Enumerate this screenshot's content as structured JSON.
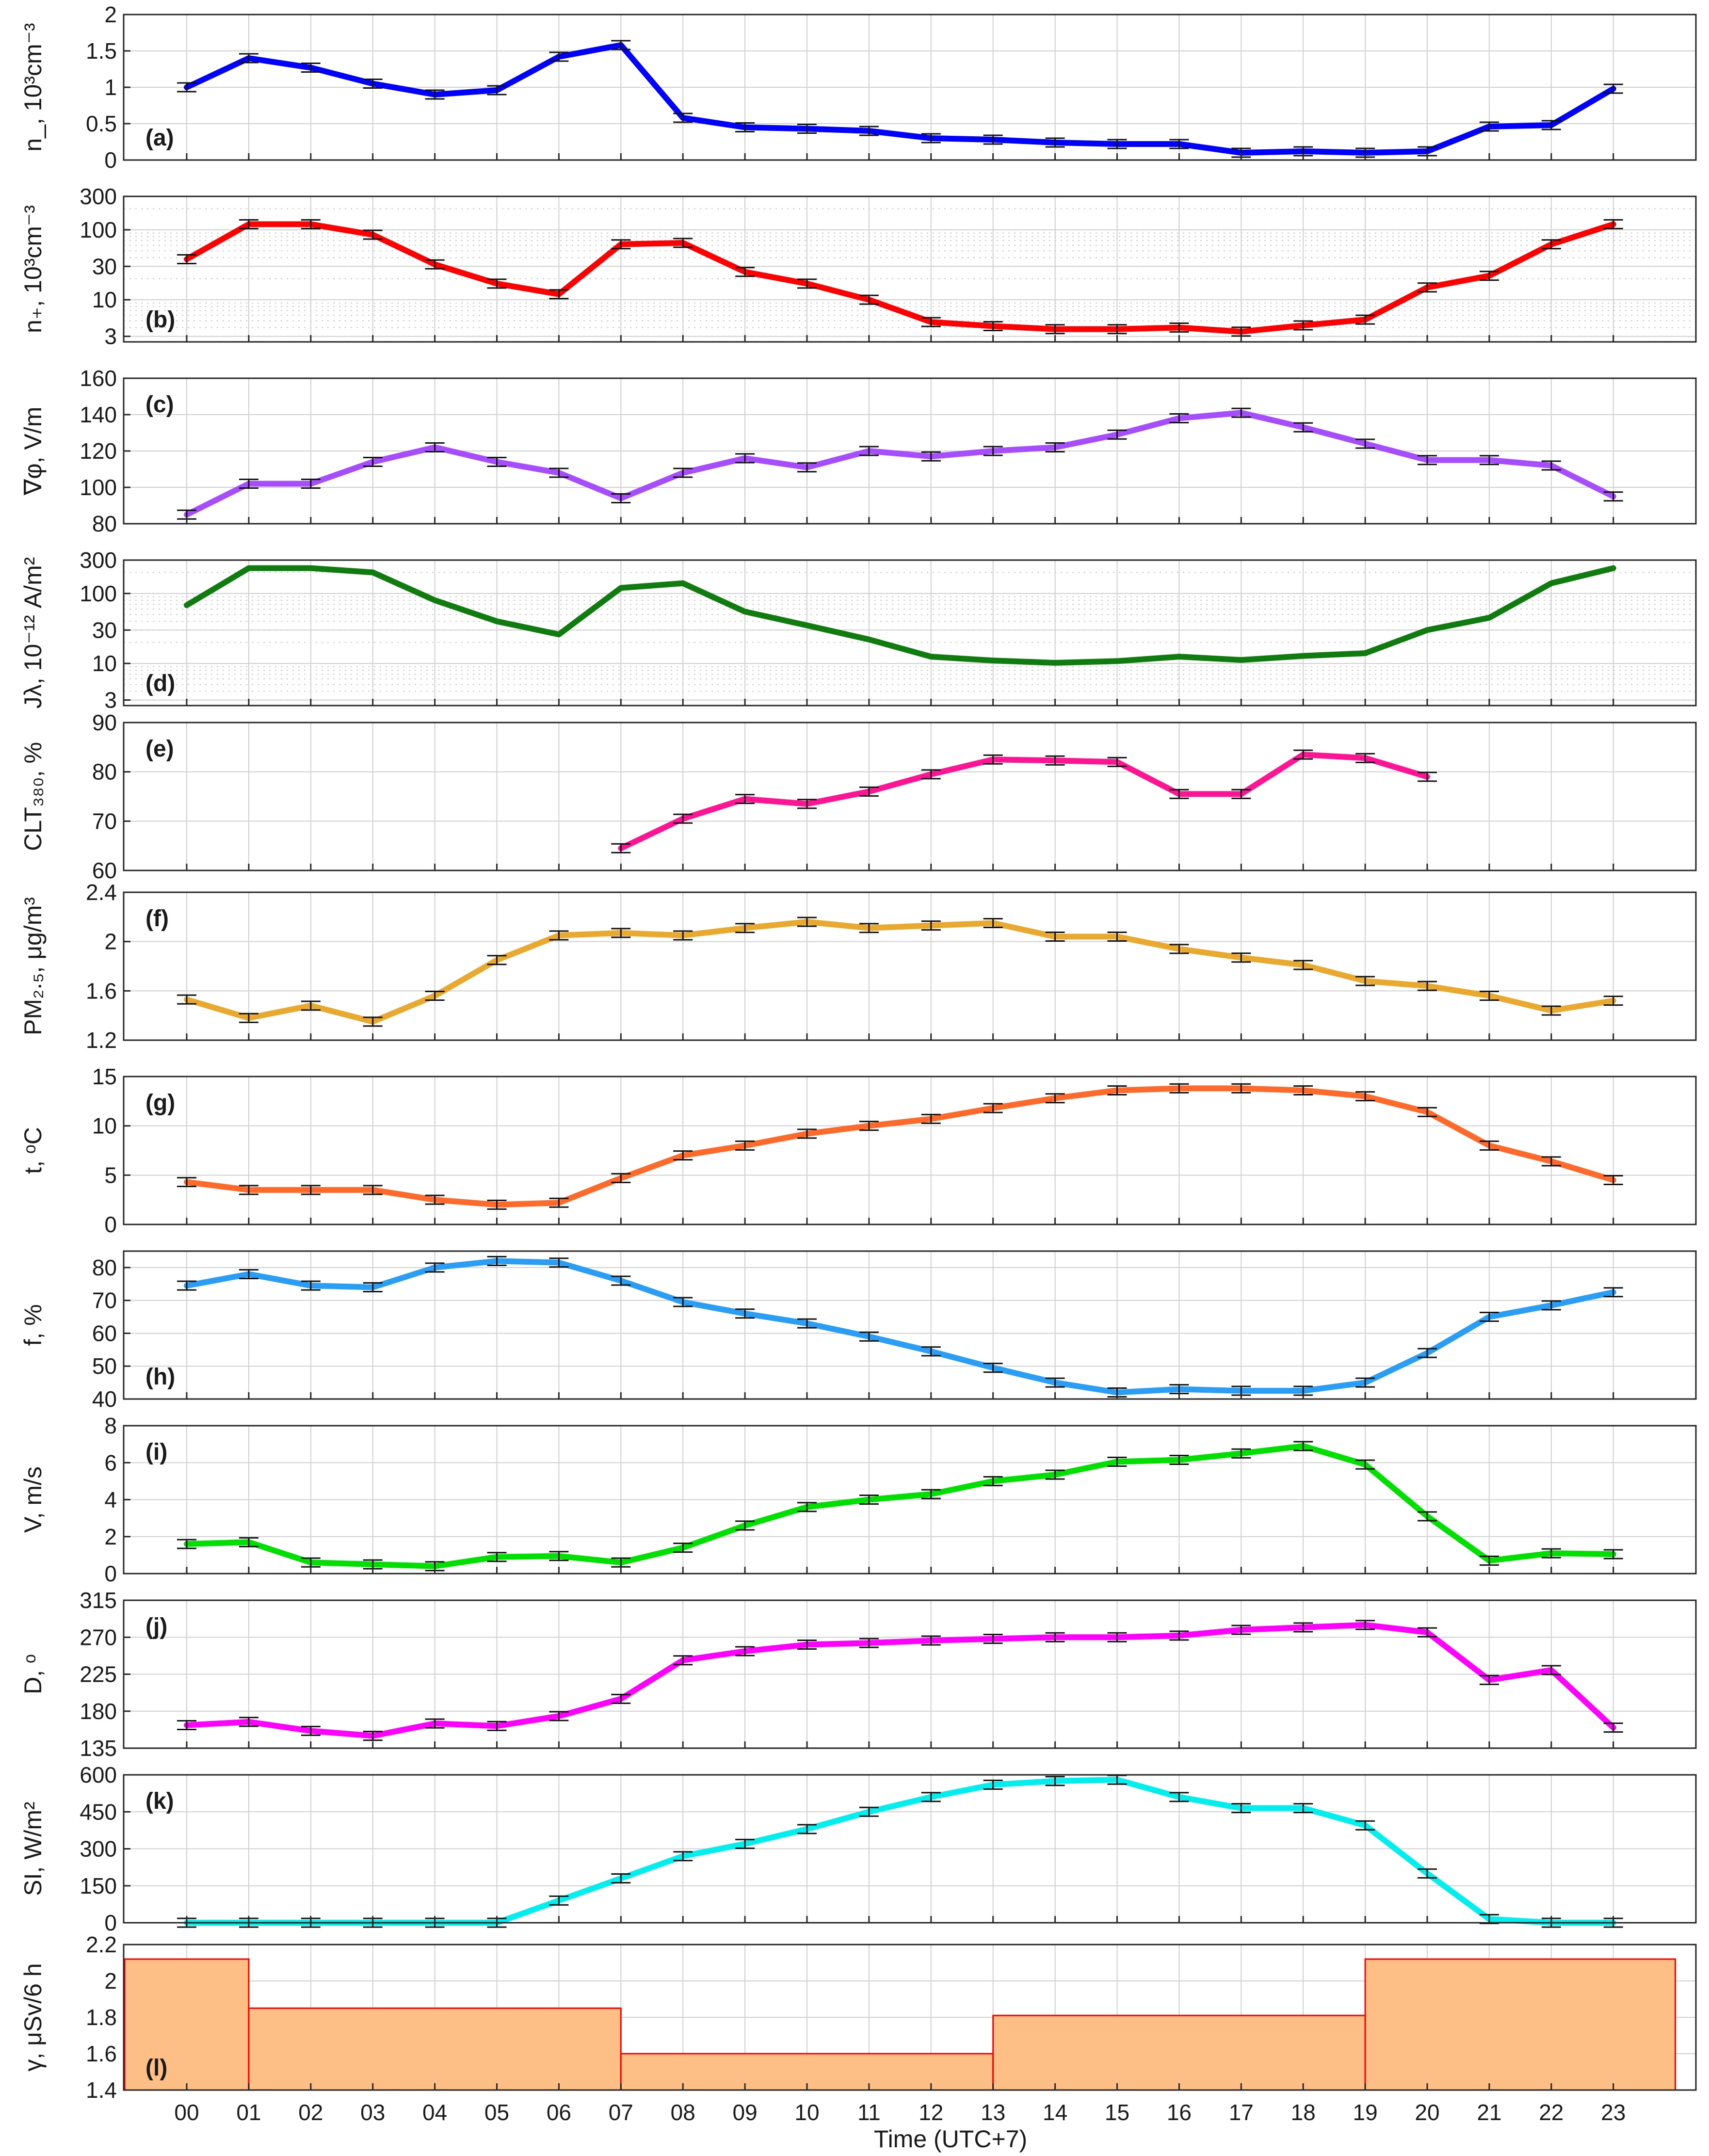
{
  "figure": {
    "xlabel": "Time (UTC+7)",
    "x_ticks": [
      "00",
      "01",
      "02",
      "03",
      "04",
      "05",
      "06",
      "07",
      "08",
      "09",
      "10",
      "11",
      "12",
      "13",
      "14",
      "15",
      "16",
      "17",
      "18",
      "19",
      "20",
      "21",
      "22",
      "23"
    ]
  },
  "chart_data": [
    {
      "id": "a",
      "tag": "(a)",
      "type": "line",
      "ylabel": "n_, 10³cm⁻³",
      "ylim": [
        0,
        2
      ],
      "yticks": [
        0,
        0.5,
        1,
        1.5,
        2
      ],
      "ytick_labels": [
        "0",
        "0.5",
        "1",
        "1.5",
        "2"
      ],
      "scale": "linear",
      "grid": true,
      "color": "#0000ff",
      "x": [
        0,
        1,
        2,
        3,
        4,
        5,
        6,
        7,
        8,
        9,
        10,
        11,
        12,
        13,
        14,
        15,
        16,
        17,
        18,
        19,
        20,
        21,
        22,
        23
      ],
      "y": [
        1.0,
        1.4,
        1.27,
        1.05,
        0.9,
        0.96,
        1.42,
        1.58,
        0.58,
        0.45,
        0.43,
        0.4,
        0.3,
        0.28,
        0.24,
        0.22,
        0.22,
        0.1,
        0.12,
        0.1,
        0.12,
        0.46,
        0.48,
        0.98
      ],
      "error_bars": true
    },
    {
      "id": "b",
      "tag": "(b)",
      "type": "line",
      "ylabel": "n₊, 10³cm⁻³",
      "ylim": [
        2.5,
        300
      ],
      "yticks": [
        3,
        10,
        30,
        100,
        300
      ],
      "ytick_labels": [
        "3",
        "10",
        "30",
        "100",
        "300"
      ],
      "scale": "log",
      "grid": true,
      "color": "#ff0000",
      "x": [
        0,
        1,
        2,
        3,
        4,
        5,
        6,
        7,
        8,
        9,
        10,
        11,
        12,
        13,
        14,
        15,
        16,
        17,
        18,
        19,
        20,
        21,
        22,
        23
      ],
      "y": [
        38,
        120,
        120,
        85,
        32,
        17,
        12,
        62,
        65,
        25,
        17,
        10,
        4.8,
        4.2,
        3.8,
        3.8,
        4.0,
        3.5,
        4.3,
        5.2,
        15,
        22,
        62,
        120
      ],
      "error_bars": true
    },
    {
      "id": "c",
      "tag": "(c)",
      "type": "line",
      "ylabel": "∇φ, V/m",
      "ylim": [
        80,
        160
      ],
      "yticks": [
        80,
        100,
        120,
        140,
        160
      ],
      "ytick_labels": [
        "80",
        "100",
        "120",
        "140",
        "160"
      ],
      "scale": "linear",
      "grid": true,
      "color": "#a64dff",
      "x": [
        0,
        1,
        2,
        3,
        4,
        5,
        6,
        7,
        8,
        9,
        10,
        11,
        12,
        13,
        14,
        15,
        16,
        17,
        18,
        19,
        20,
        21,
        22,
        23
      ],
      "y": [
        85,
        102,
        102,
        114,
        122,
        114,
        108,
        94,
        108,
        116,
        111,
        120,
        117,
        120,
        122,
        129,
        138,
        141,
        133,
        124,
        115,
        115,
        112,
        95
      ],
      "error_bars": true
    },
    {
      "id": "d",
      "tag": "(d)",
      "type": "line",
      "ylabel": "Jλ, 10⁻¹² A/m²",
      "ylim": [
        2.5,
        300
      ],
      "yticks": [
        3,
        10,
        30,
        100,
        300
      ],
      "ytick_labels": [
        "3",
        "10",
        "30",
        "100",
        "300"
      ],
      "scale": "log",
      "grid": true,
      "color": "#107c10",
      "x": [
        0,
        1,
        2,
        3,
        4,
        5,
        6,
        7,
        8,
        9,
        10,
        11,
        12,
        13,
        14,
        15,
        16,
        17,
        18,
        19,
        20,
        21,
        22,
        23
      ],
      "y": [
        68,
        230,
        230,
        200,
        80,
        40,
        26,
        120,
        140,
        55,
        35,
        22,
        12.5,
        11,
        10.2,
        10.8,
        12.5,
        11.2,
        12.8,
        14,
        30,
        45,
        140,
        230
      ],
      "error_bars": false
    },
    {
      "id": "e",
      "tag": "(e)",
      "type": "line",
      "ylabel": "CLT₃₈₀, %",
      "ylim": [
        60,
        90
      ],
      "yticks": [
        60,
        70,
        80,
        90
      ],
      "ytick_labels": [
        "60",
        "70",
        "80",
        "90"
      ],
      "scale": "linear",
      "grid": true,
      "color": "#ff1493",
      "x": [
        7,
        8,
        9,
        10,
        11,
        12,
        13,
        14,
        15,
        16,
        17,
        18,
        19,
        20
      ],
      "y": [
        64.5,
        70.5,
        74.5,
        73.5,
        76,
        79.5,
        82.5,
        82.3,
        82,
        75.5,
        75.5,
        83.5,
        82.8,
        79
      ],
      "error_bars": true
    },
    {
      "id": "f",
      "tag": "(f)",
      "type": "line",
      "ylabel": "PM₂.₅, μg/m³",
      "ylim": [
        1.2,
        2.4
      ],
      "yticks": [
        1.2,
        1.6,
        2,
        2.4
      ],
      "ytick_labels": [
        "1.2",
        "1.6",
        "2",
        "2.4"
      ],
      "scale": "linear",
      "grid": true,
      "color": "#e8a92e",
      "x": [
        0,
        1,
        2,
        3,
        4,
        5,
        6,
        7,
        8,
        9,
        10,
        11,
        12,
        13,
        14,
        15,
        16,
        17,
        18,
        19,
        20,
        21,
        22,
        23
      ],
      "y": [
        1.53,
        1.38,
        1.48,
        1.35,
        1.56,
        1.85,
        2.05,
        2.07,
        2.05,
        2.11,
        2.16,
        2.11,
        2.13,
        2.15,
        2.04,
        2.04,
        1.94,
        1.87,
        1.81,
        1.68,
        1.64,
        1.56,
        1.44,
        1.52
      ],
      "error_bars": true
    },
    {
      "id": "g",
      "tag": "(g)",
      "type": "line",
      "ylabel": "t, ᵒC",
      "ylim": [
        0,
        15
      ],
      "yticks": [
        0,
        5,
        10,
        15
      ],
      "ytick_labels": [
        "0",
        "5",
        "10",
        "15"
      ],
      "scale": "linear",
      "grid": true,
      "color": "#ff6a2a",
      "x": [
        0,
        1,
        2,
        3,
        4,
        5,
        6,
        7,
        8,
        9,
        10,
        11,
        12,
        13,
        14,
        15,
        16,
        17,
        18,
        19,
        20,
        21,
        22,
        23
      ],
      "y": [
        4.3,
        3.5,
        3.5,
        3.5,
        2.5,
        2.0,
        2.2,
        4.7,
        7.0,
        8.0,
        9.2,
        10.0,
        10.7,
        11.8,
        12.8,
        13.6,
        13.8,
        13.8,
        13.6,
        13.0,
        11.4,
        8.0,
        6.4,
        4.5
      ],
      "error_bars": true
    },
    {
      "id": "h",
      "tag": "(h)",
      "type": "line",
      "ylabel": "f, %",
      "ylim": [
        40,
        85
      ],
      "yticks": [
        40,
        50,
        60,
        70,
        80
      ],
      "ytick_labels": [
        "40",
        "50",
        "60",
        "70",
        "80"
      ],
      "scale": "linear",
      "grid": true,
      "color": "#2a9df4",
      "x": [
        0,
        1,
        2,
        3,
        4,
        5,
        6,
        7,
        8,
        9,
        10,
        11,
        12,
        13,
        14,
        15,
        16,
        17,
        18,
        19,
        20,
        21,
        22,
        23
      ],
      "y": [
        74.5,
        78,
        74.5,
        74,
        80,
        82,
        81.5,
        76,
        69.5,
        66,
        63,
        59,
        54.5,
        49.5,
        45,
        42,
        43,
        42.5,
        42.5,
        45,
        54,
        65,
        68.5,
        72.5
      ],
      "error_bars": true
    },
    {
      "id": "i",
      "tag": "(i)",
      "type": "line",
      "ylabel": "V, m/s",
      "ylim": [
        0,
        8
      ],
      "yticks": [
        0,
        2,
        4,
        6,
        8
      ],
      "ytick_labels": [
        "0",
        "2",
        "4",
        "6",
        "8"
      ],
      "scale": "linear",
      "grid": true,
      "color": "#00e000",
      "x": [
        0,
        1,
        2,
        3,
        4,
        5,
        6,
        7,
        8,
        9,
        10,
        11,
        12,
        13,
        14,
        15,
        16,
        17,
        18,
        19,
        20,
        21,
        22,
        23
      ],
      "y": [
        1.6,
        1.7,
        0.6,
        0.5,
        0.4,
        0.9,
        0.95,
        0.6,
        1.4,
        2.6,
        3.6,
        4.0,
        4.3,
        5.0,
        5.35,
        6.05,
        6.15,
        6.5,
        6.9,
        5.9,
        3.1,
        0.7,
        1.1,
        1.05
      ],
      "error_bars": true
    },
    {
      "id": "j",
      "tag": "(j)",
      "type": "line",
      "ylabel": "D, ᵒ",
      "ylim": [
        135,
        315
      ],
      "yticks": [
        135,
        180,
        225,
        270,
        315
      ],
      "ytick_labels": [
        "135",
        "180",
        "225",
        "270",
        "315"
      ],
      "scale": "linear",
      "grid": true,
      "color": "#ff00ff",
      "x": [
        0,
        1,
        2,
        3,
        4,
        5,
        6,
        7,
        8,
        9,
        10,
        11,
        12,
        13,
        14,
        15,
        16,
        17,
        18,
        19,
        20,
        21,
        22,
        23
      ],
      "y": [
        163,
        167,
        156,
        150,
        165,
        162,
        174,
        195,
        242,
        253,
        261,
        263,
        266,
        268,
        270,
        270,
        272,
        279,
        282,
        285,
        276,
        218,
        230,
        160
      ],
      "error_bars": true
    },
    {
      "id": "k",
      "tag": "(k)",
      "type": "line",
      "ylabel": "SI, W/m²",
      "ylim": [
        0,
        600
      ],
      "yticks": [
        0,
        150,
        300,
        450,
        600
      ],
      "ytick_labels": [
        "0",
        "150",
        "300",
        "450",
        "600"
      ],
      "scale": "linear",
      "grid": true,
      "color": "#00eeee",
      "x": [
        0,
        1,
        2,
        3,
        4,
        5,
        6,
        7,
        8,
        9,
        10,
        11,
        12,
        13,
        14,
        15,
        16,
        17,
        18,
        19,
        20,
        21,
        22,
        23
      ],
      "y": [
        0,
        0,
        0,
        0,
        0,
        0,
        90,
        180,
        270,
        320,
        380,
        450,
        510,
        560,
        575,
        580,
        510,
        465,
        465,
        395,
        200,
        15,
        0,
        0
      ],
      "error_bars": true
    },
    {
      "id": "l",
      "tag": "(l)",
      "type": "bar",
      "ylabel": "γ, μSv/6 h",
      "ylim": [
        1.4,
        2.2
      ],
      "yticks": [
        1.4,
        1.6,
        1.8,
        2,
        2.2
      ],
      "ytick_labels": [
        "1.4",
        "1.6",
        "1.8",
        "2",
        "2.2"
      ],
      "scale": "linear",
      "grid": true,
      "color": "#fdbf86",
      "edge_color": "#ff0000",
      "bars": [
        {
          "from": -1,
          "to": 1,
          "value": 2.12
        },
        {
          "from": 1,
          "to": 7,
          "value": 1.85
        },
        {
          "from": 7,
          "to": 13,
          "value": 1.6
        },
        {
          "from": 13,
          "to": 19,
          "value": 1.81
        },
        {
          "from": 19,
          "to": 24,
          "value": 2.12
        }
      ]
    }
  ]
}
